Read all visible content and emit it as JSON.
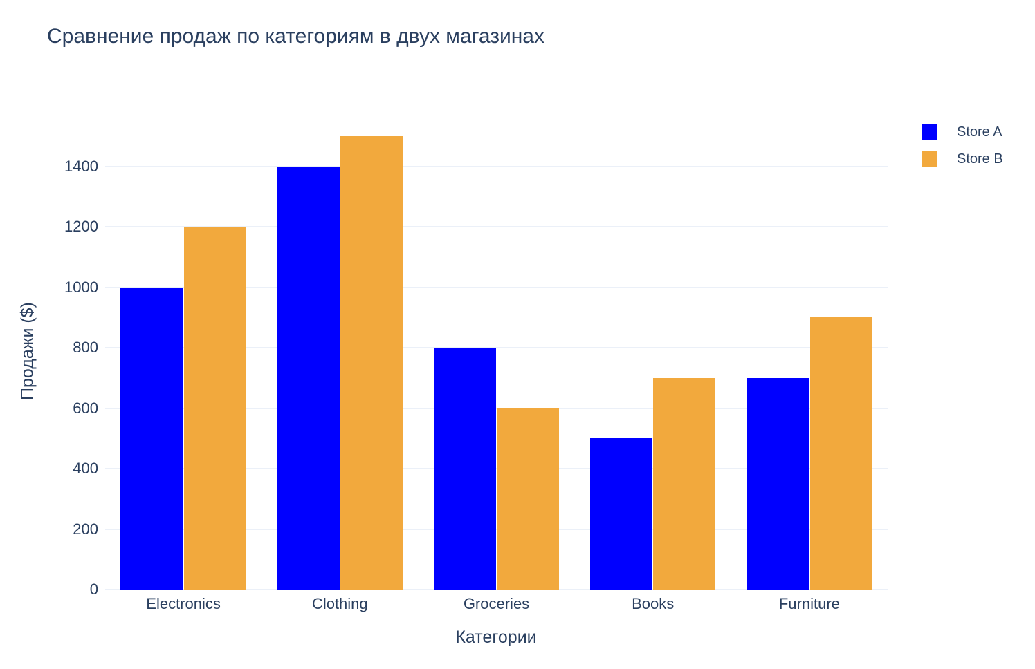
{
  "title": "Сравнение продаж по категориям в двух магазинах",
  "chart_data": {
    "type": "bar",
    "title": "Сравнение продаж по категориям в двух магазинах",
    "categories": [
      "Electronics",
      "Clothing",
      "Groceries",
      "Books",
      "Furniture"
    ],
    "series": [
      {
        "name": "Store A",
        "color": "#0000ff",
        "values": [
          1000,
          1400,
          800,
          500,
          700
        ]
      },
      {
        "name": "Store B",
        "color": "#f2a93d",
        "values": [
          1200,
          1500,
          600,
          700,
          900
        ]
      }
    ],
    "xlabel": "Категории",
    "ylabel": "Продажи ($)",
    "ylim": [
      0,
      1578
    ],
    "yticks": [
      0,
      200,
      400,
      600,
      800,
      1000,
      1200,
      1400
    ],
    "grid": true,
    "legend_position": "right-top",
    "colors": {
      "text": "#2a3f5f",
      "grid": "#ebf0f8",
      "background": "#ffffff"
    }
  }
}
